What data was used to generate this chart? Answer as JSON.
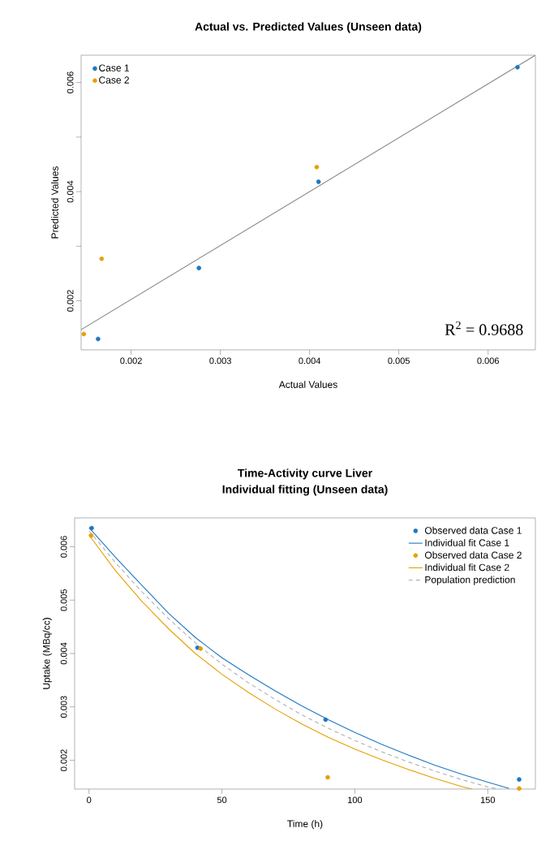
{
  "chart_data": [
    {
      "type": "scatter",
      "title": "Actual vs. Predicted Values (Unseen data)",
      "xlabel": "Actual Values",
      "ylabel": "Predicted Values",
      "xlim": [
        0.00144,
        0.00653
      ],
      "ylim": [
        0.0011,
        0.0065
      ],
      "xticks": [
        0.002,
        0.003,
        0.004,
        0.005,
        0.006
      ],
      "yticks": [
        0.002,
        {
          "value": 0.003,
          "label": null
        },
        0.004,
        {
          "value": 0.005,
          "label": null
        },
        0.006
      ],
      "legend": "top left",
      "marker": "circle",
      "annotations": [
        "R$^{2}$ = 0.9688"
      ],
      "series": [
        {
          "name": "Case 1",
          "color": "#1f78c1",
          "x": [
            0.00163,
            0.00276,
            0.0041,
            0.00633
          ],
          "values": [
            0.0013,
            0.0026,
            0.00418,
            0.00628
          ]
        },
        {
          "name": "Case 2",
          "color": "#e69f00",
          "x": [
            0.00147,
            0.00167,
            0.00408,
            null
          ],
          "values": [
            0.00139,
            0.00277,
            0.00445,
            null
          ]
        },
        {
          "type": "line",
          "color": "#888888",
          "line_style": "solid",
          "marker": "none",
          "x": [
            0.00144,
            0.00653
          ],
          "values": [
            0.00147,
            0.0065
          ]
        }
      ]
    },
    {
      "type": "line",
      "title": "Time-Activity curve Liver",
      "subtitle": "Individual fitting (Unseen data)",
      "xlabel": "Time (h)",
      "ylabel": "Uptake (MBq/cc)",
      "xlim": [
        -5.4,
        167.9
      ],
      "ylim": [
        0.00146,
        0.00654
      ],
      "xticks": [
        0,
        50,
        100,
        150
      ],
      "yticks": [
        0.002,
        0.003,
        0.004,
        0.005,
        0.006
      ],
      "legend": "top right",
      "series": [
        {
          "name": "Observed data Case 1",
          "type": "scatter",
          "marker": "circle",
          "color": "#1f78c1",
          "x": [
            1.0,
            40.8,
            89.0,
            161.8
          ],
          "values": [
            0.00635,
            0.00411,
            0.00276,
            0.00164
          ]
        },
        {
          "name": "Individual fit Case 1",
          "type": "line",
          "marker": "none",
          "line_style": "solid",
          "color": "#1f78c1",
          "x": [
            0,
            10,
            20,
            30,
            40,
            50,
            60,
            70,
            80,
            90,
            100,
            110,
            120,
            130,
            140,
            150,
            158
          ],
          "values": [
            0.00636,
            0.0058,
            0.00527,
            0.00475,
            0.0043,
            0.00392,
            0.0036,
            0.0033,
            0.00302,
            0.00276,
            0.00252,
            0.0023,
            0.0021,
            0.00191,
            0.00174,
            0.00159,
            0.00147
          ]
        },
        {
          "name": "Observed data Case 2",
          "type": "scatter",
          "marker": "circle",
          "color": "#e69f00",
          "x": [
            0.8,
            42.0,
            89.8,
            161.8
          ],
          "values": [
            0.00621,
            0.00409,
            0.00168,
            0.00147
          ]
        },
        {
          "name": "Individual fit Case 2",
          "type": "line",
          "marker": "none",
          "line_style": "solid",
          "color": "#e69f00",
          "x": [
            0,
            10,
            20,
            30,
            40,
            50,
            60,
            70,
            80,
            90,
            100,
            110,
            120,
            130,
            140,
            144
          ],
          "values": [
            0.00622,
            0.00555,
            0.00497,
            0.00446,
            0.004,
            0.00361,
            0.00327,
            0.00296,
            0.00268,
            0.00243,
            0.00221,
            0.00201,
            0.00183,
            0.00166,
            0.00151,
            0.00146
          ]
        },
        {
          "name": "Population prediction",
          "type": "line",
          "marker": "none",
          "line_style": "dashed",
          "color": "#b0b0b0",
          "x": [
            0,
            10,
            20,
            30,
            40,
            50,
            60,
            70,
            80,
            90,
            100,
            110,
            120,
            130,
            140,
            150,
            154
          ],
          "values": [
            0.0063,
            0.0057,
            0.00515,
            0.00465,
            0.0042,
            0.0038,
            0.00345,
            0.00314,
            0.00285,
            0.0026,
            0.00237,
            0.00216,
            0.00197,
            0.0018,
            0.00164,
            0.0015,
            0.00146
          ]
        }
      ]
    }
  ]
}
